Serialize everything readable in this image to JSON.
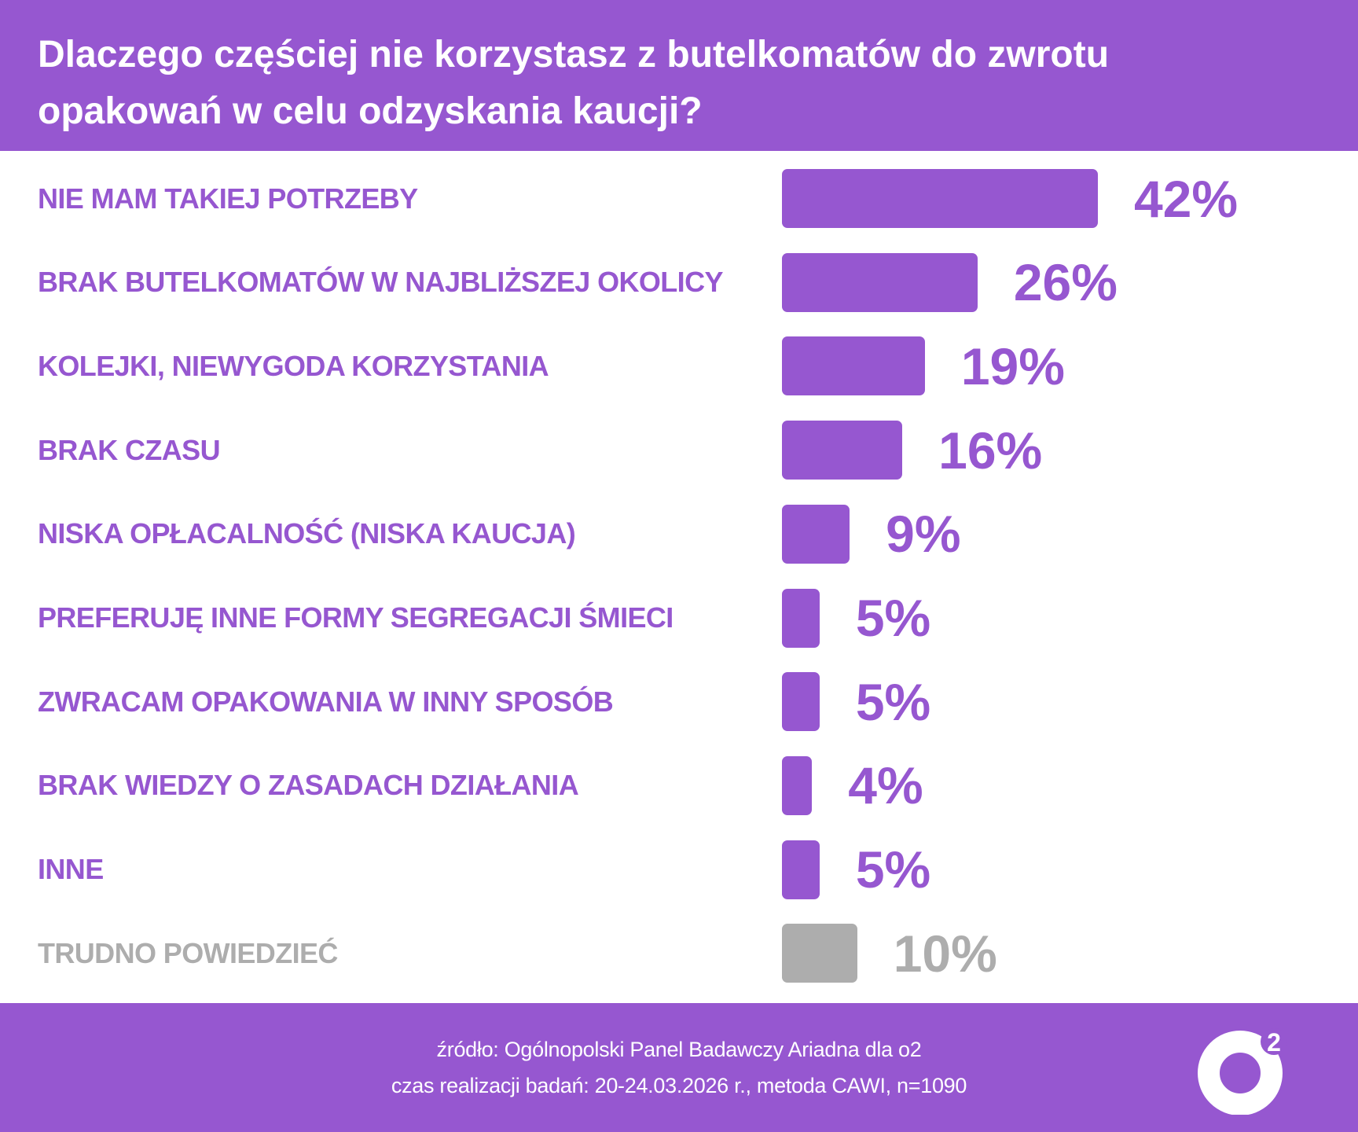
{
  "title_lines": [
    "Dlaczego częściej nie korzystasz z butelkomatów do zwrotu",
    "opakowań w celu odzyskania kaucji?"
  ],
  "chart_data": {
    "type": "bar",
    "orientation": "horizontal",
    "title": "Dlaczego częściej nie korzystasz z butelkomatów do zwrotu opakowań w celu odzyskania kaucji?",
    "unit": "%",
    "categories": [
      "NIE MAM TAKIEJ POTRZEBY",
      "BRAK BUTELKOMATÓW W NAJBLIŻSZEJ OKOLICY",
      "KOLEJKI, NIEWYGODA KORZYSTANIA",
      "BRAK CZASU",
      "NISKA OPŁACALNOŚĆ (NISKA KAUCJA)",
      "PREFERUJĘ INNE FORMY SEGREGACJI ŚMIECI",
      "ZWRACAM OPAKOWANIA W INNY SPOSÓB",
      "BRAK WIEDZY O ZASADACH DZIAŁANIA",
      "INNE",
      "TRUDNO POWIEDZIEĆ"
    ],
    "values": [
      42,
      26,
      19,
      16,
      9,
      5,
      5,
      4,
      5,
      10
    ],
    "value_labels": [
      "42%",
      "26%",
      "19%",
      "16%",
      "9%",
      "5%",
      "5%",
      "4%",
      "5%",
      "10%"
    ],
    "muted": [
      false,
      false,
      false,
      false,
      false,
      false,
      false,
      false,
      false,
      true
    ],
    "grid": false,
    "colors": {
      "bar": "#9657D0",
      "muted": "#ADADAD"
    }
  },
  "footer": {
    "source": "źródło: Ogólnopolski Panel Badawczy Ariadna dla o2",
    "details": "czas realizacji badań: 20-24.03.2026 r., metoda CAWI, n=1090"
  },
  "logo": {
    "text": "o2"
  },
  "colors": {
    "brand": "#9657D0",
    "background": "#FFFFFF"
  }
}
